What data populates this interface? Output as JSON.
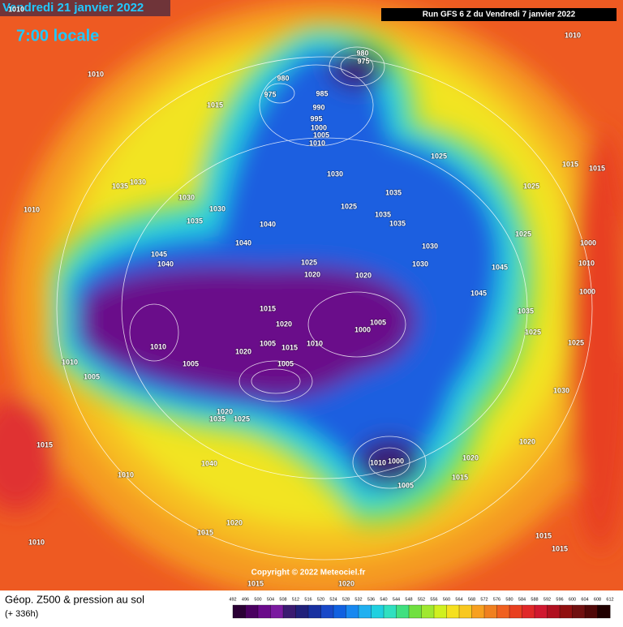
{
  "header": {
    "date": "Vendredi 21 janvier 2022",
    "time": "7:00 locale",
    "run": "Run GFS 6 Z du Vendredi 7 janvier 2022"
  },
  "copyright": "Copyright © 2022 Meteociel.fr",
  "footer": {
    "title": "Géop. Z500 & pression au sol",
    "lead": "(+ 336h)"
  },
  "legend": {
    "values": [
      492,
      496,
      500,
      504,
      508,
      512,
      516,
      520,
      524,
      528,
      532,
      536,
      540,
      544,
      548,
      552,
      556,
      560,
      564,
      568,
      572,
      576,
      580,
      584,
      588,
      592,
      596,
      600,
      604,
      608,
      612
    ],
    "colors": [
      "#2b0035",
      "#4a0060",
      "#6a0a8a",
      "#7a1aa0",
      "#3a1a70",
      "#20207a",
      "#1830a0",
      "#1848c8",
      "#1060e0",
      "#1888f0",
      "#20b0f0",
      "#20d0e0",
      "#30e0c0",
      "#40e080",
      "#70e040",
      "#a0e830",
      "#d0f020",
      "#f5e020",
      "#f8c820",
      "#f7a020",
      "#f08020",
      "#f06020",
      "#e84020",
      "#e02828",
      "#d01830",
      "#b01020",
      "#901010",
      "#701010",
      "#500808",
      "#200000"
    ]
  },
  "isobars": [
    "1010",
    "1010",
    "1010",
    "1015",
    "980",
    "975",
    "980",
    "975",
    "985",
    "990",
    "995",
    "1000",
    "1005",
    "1010",
    "1025",
    "1015",
    "1015",
    "1030",
    "1025",
    "1035",
    "1030",
    "1030",
    "1030",
    "1025",
    "1035",
    "1035",
    "1035",
    "1010",
    "1035",
    "1040",
    "1040",
    "1025",
    "1000",
    "1030",
    "1045",
    "1040",
    "1025",
    "1030",
    "1020",
    "1045",
    "1010",
    "1020",
    "1000",
    "1045",
    "1035",
    "1005",
    "1000",
    "1020",
    "1025",
    "1015",
    "1010",
    "1005",
    "1005",
    "1015",
    "1010",
    "1025",
    "1020",
    "1005",
    "1010",
    "1005",
    "1030",
    "1020",
    "1035",
    "1025",
    "1020",
    "1000",
    "1010",
    "1020",
    "1015",
    "1005",
    "1015",
    "1040",
    "1010",
    "1020",
    "1015",
    "1015",
    "1010",
    "1015",
    "1015",
    "1020"
  ]
}
